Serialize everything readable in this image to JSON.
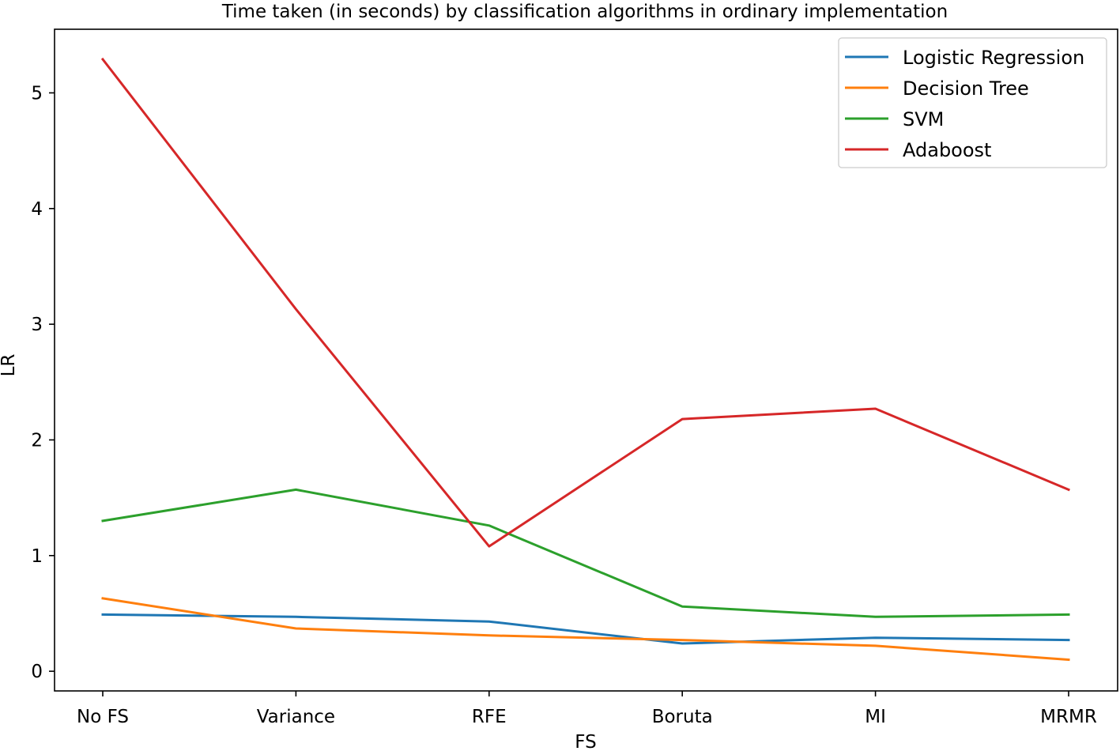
{
  "chart_data": {
    "type": "line",
    "title": "Time taken (in seconds) by classification algorithms in ordinary implementation",
    "xlabel": "FS",
    "ylabel": "LR",
    "categories": [
      "No FS",
      "Variance",
      "RFE",
      "Boruta",
      "MI",
      "MRMR"
    ],
    "yticks": [
      0,
      1,
      2,
      3,
      4,
      5
    ],
    "ylim": [
      -0.17,
      5.55
    ],
    "grid": false,
    "legend_position": "top-right",
    "series": [
      {
        "name": "Logistic Regression",
        "color": "#1f77b4",
        "values": [
          0.49,
          0.47,
          0.43,
          0.24,
          0.29,
          0.27
        ]
      },
      {
        "name": "Decision Tree",
        "color": "#ff7f0e",
        "values": [
          0.63,
          0.37,
          0.31,
          0.27,
          0.22,
          0.1
        ]
      },
      {
        "name": "SVM",
        "color": "#2ca02c",
        "values": [
          1.3,
          1.57,
          1.26,
          0.56,
          0.47,
          0.49
        ]
      },
      {
        "name": "Adaboost",
        "color": "#d62728",
        "values": [
          5.29,
          3.13,
          1.08,
          2.18,
          2.27,
          1.57
        ]
      }
    ]
  }
}
